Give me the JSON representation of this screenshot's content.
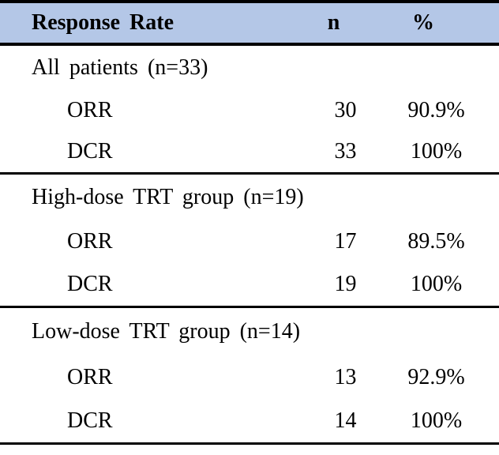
{
  "table": {
    "header": {
      "col1": "Response Rate",
      "col2": "n",
      "col3": "%"
    },
    "sections": [
      {
        "title": "All patients (n=33)",
        "rows": [
          {
            "label": "ORR",
            "n": "30",
            "pct": "90.9%"
          },
          {
            "label": "DCR",
            "n": "33",
            "pct": "100%"
          }
        ]
      },
      {
        "title": "High-dose TRT group (n=19)",
        "rows": [
          {
            "label": "ORR",
            "n": "17",
            "pct": "89.5%"
          },
          {
            "label": "DCR",
            "n": "19",
            "pct": "100%"
          }
        ]
      },
      {
        "title": "Low-dose TRT group (n=14)",
        "rows": [
          {
            "label": "ORR",
            "n": "13",
            "pct": "92.9%"
          },
          {
            "label": "DCR",
            "n": "14",
            "pct": "100%"
          }
        ]
      }
    ],
    "colors": {
      "header_bg": "#b4c7e7",
      "border": "#000000",
      "text": "#000000",
      "background": "#ffffff"
    }
  }
}
